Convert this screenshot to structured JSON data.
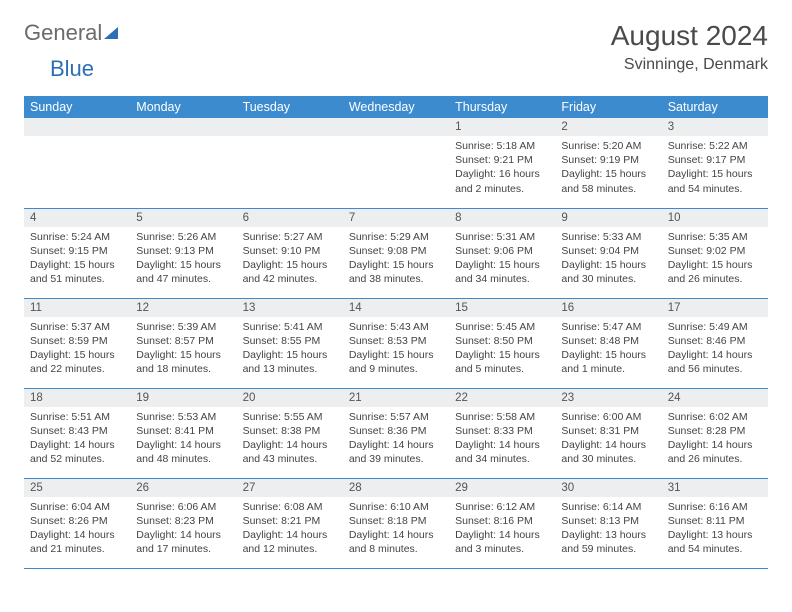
{
  "logo": {
    "word1": "General",
    "word2": "Blue"
  },
  "header": {
    "title": "August 2024",
    "location": "Svinninge, Denmark"
  },
  "colors": {
    "header_bg": "#3d8bcf",
    "header_text": "#ffffff",
    "daynum_bg": "#eceeef",
    "rule": "#3d8bcf",
    "logo_gray": "#6b6b6b",
    "logo_blue": "#2d6fb6"
  },
  "weekdays": [
    "Sunday",
    "Monday",
    "Tuesday",
    "Wednesday",
    "Thursday",
    "Friday",
    "Saturday"
  ],
  "weeks": [
    [
      {
        "n": "",
        "body": ""
      },
      {
        "n": "",
        "body": ""
      },
      {
        "n": "",
        "body": ""
      },
      {
        "n": "",
        "body": ""
      },
      {
        "n": "1",
        "body": "Sunrise: 5:18 AM\nSunset: 9:21 PM\nDaylight: 16 hours and 2 minutes."
      },
      {
        "n": "2",
        "body": "Sunrise: 5:20 AM\nSunset: 9:19 PM\nDaylight: 15 hours and 58 minutes."
      },
      {
        "n": "3",
        "body": "Sunrise: 5:22 AM\nSunset: 9:17 PM\nDaylight: 15 hours and 54 minutes."
      }
    ],
    [
      {
        "n": "4",
        "body": "Sunrise: 5:24 AM\nSunset: 9:15 PM\nDaylight: 15 hours and 51 minutes."
      },
      {
        "n": "5",
        "body": "Sunrise: 5:26 AM\nSunset: 9:13 PM\nDaylight: 15 hours and 47 minutes."
      },
      {
        "n": "6",
        "body": "Sunrise: 5:27 AM\nSunset: 9:10 PM\nDaylight: 15 hours and 42 minutes."
      },
      {
        "n": "7",
        "body": "Sunrise: 5:29 AM\nSunset: 9:08 PM\nDaylight: 15 hours and 38 minutes."
      },
      {
        "n": "8",
        "body": "Sunrise: 5:31 AM\nSunset: 9:06 PM\nDaylight: 15 hours and 34 minutes."
      },
      {
        "n": "9",
        "body": "Sunrise: 5:33 AM\nSunset: 9:04 PM\nDaylight: 15 hours and 30 minutes."
      },
      {
        "n": "10",
        "body": "Sunrise: 5:35 AM\nSunset: 9:02 PM\nDaylight: 15 hours and 26 minutes."
      }
    ],
    [
      {
        "n": "11",
        "body": "Sunrise: 5:37 AM\nSunset: 8:59 PM\nDaylight: 15 hours and 22 minutes."
      },
      {
        "n": "12",
        "body": "Sunrise: 5:39 AM\nSunset: 8:57 PM\nDaylight: 15 hours and 18 minutes."
      },
      {
        "n": "13",
        "body": "Sunrise: 5:41 AM\nSunset: 8:55 PM\nDaylight: 15 hours and 13 minutes."
      },
      {
        "n": "14",
        "body": "Sunrise: 5:43 AM\nSunset: 8:53 PM\nDaylight: 15 hours and 9 minutes."
      },
      {
        "n": "15",
        "body": "Sunrise: 5:45 AM\nSunset: 8:50 PM\nDaylight: 15 hours and 5 minutes."
      },
      {
        "n": "16",
        "body": "Sunrise: 5:47 AM\nSunset: 8:48 PM\nDaylight: 15 hours and 1 minute."
      },
      {
        "n": "17",
        "body": "Sunrise: 5:49 AM\nSunset: 8:46 PM\nDaylight: 14 hours and 56 minutes."
      }
    ],
    [
      {
        "n": "18",
        "body": "Sunrise: 5:51 AM\nSunset: 8:43 PM\nDaylight: 14 hours and 52 minutes."
      },
      {
        "n": "19",
        "body": "Sunrise: 5:53 AM\nSunset: 8:41 PM\nDaylight: 14 hours and 48 minutes."
      },
      {
        "n": "20",
        "body": "Sunrise: 5:55 AM\nSunset: 8:38 PM\nDaylight: 14 hours and 43 minutes."
      },
      {
        "n": "21",
        "body": "Sunrise: 5:57 AM\nSunset: 8:36 PM\nDaylight: 14 hours and 39 minutes."
      },
      {
        "n": "22",
        "body": "Sunrise: 5:58 AM\nSunset: 8:33 PM\nDaylight: 14 hours and 34 minutes."
      },
      {
        "n": "23",
        "body": "Sunrise: 6:00 AM\nSunset: 8:31 PM\nDaylight: 14 hours and 30 minutes."
      },
      {
        "n": "24",
        "body": "Sunrise: 6:02 AM\nSunset: 8:28 PM\nDaylight: 14 hours and 26 minutes."
      }
    ],
    [
      {
        "n": "25",
        "body": "Sunrise: 6:04 AM\nSunset: 8:26 PM\nDaylight: 14 hours and 21 minutes."
      },
      {
        "n": "26",
        "body": "Sunrise: 6:06 AM\nSunset: 8:23 PM\nDaylight: 14 hours and 17 minutes."
      },
      {
        "n": "27",
        "body": "Sunrise: 6:08 AM\nSunset: 8:21 PM\nDaylight: 14 hours and 12 minutes."
      },
      {
        "n": "28",
        "body": "Sunrise: 6:10 AM\nSunset: 8:18 PM\nDaylight: 14 hours and 8 minutes."
      },
      {
        "n": "29",
        "body": "Sunrise: 6:12 AM\nSunset: 8:16 PM\nDaylight: 14 hours and 3 minutes."
      },
      {
        "n": "30",
        "body": "Sunrise: 6:14 AM\nSunset: 8:13 PM\nDaylight: 13 hours and 59 minutes."
      },
      {
        "n": "31",
        "body": "Sunrise: 6:16 AM\nSunset: 8:11 PM\nDaylight: 13 hours and 54 minutes."
      }
    ]
  ]
}
